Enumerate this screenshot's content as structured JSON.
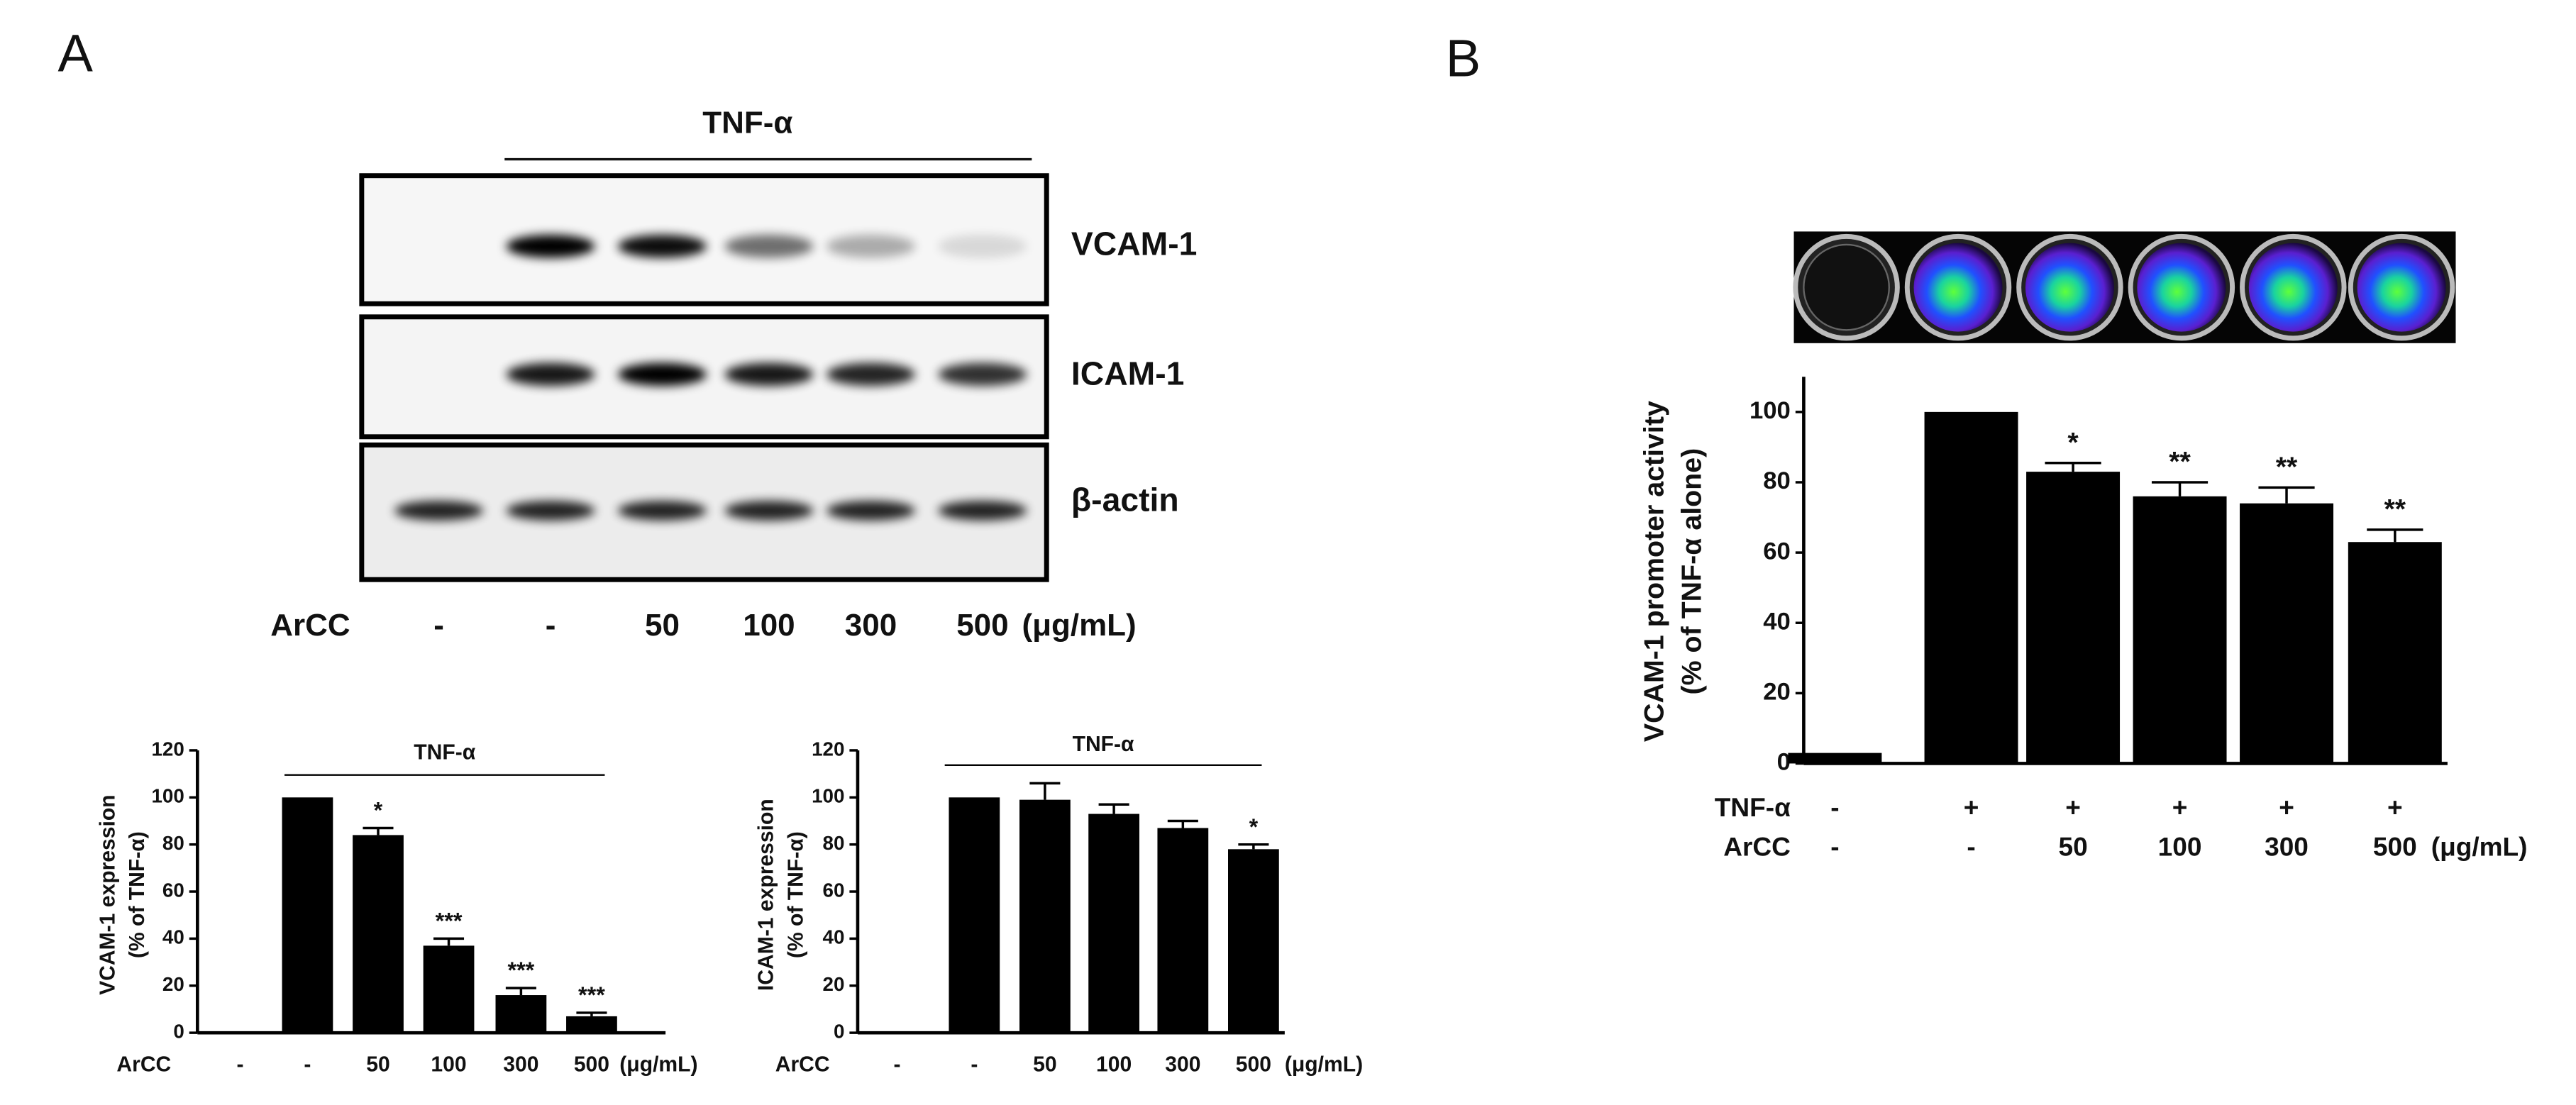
{
  "panel_labels": [
    "A",
    "B"
  ],
  "blot": {
    "treatment": "TNF-α",
    "proteins": [
      "VCAM-1",
      "ICAM-1",
      "β-actin"
    ],
    "dose_label": "ArCC",
    "doses": [
      "-",
      "-",
      "50",
      "100",
      "300",
      "500"
    ],
    "unit": "(μg/mL)"
  },
  "chart_data": [
    {
      "type": "bar",
      "ylabel": [
        "VCAM-1 expression",
        "(% of TNF-α)"
      ],
      "ylim": [
        0,
        120
      ],
      "yticks": [
        0,
        20,
        40,
        60,
        80,
        100,
        120
      ],
      "group_label": "TNF-α",
      "x_row_label": "ArCC",
      "categories": [
        "-",
        "-",
        "50",
        "100",
        "300",
        "500"
      ],
      "x_unit": "(μg/mL)",
      "values": [
        0,
        100,
        84,
        37,
        16,
        7
      ],
      "errors": [
        null,
        null,
        3,
        3,
        3,
        1.5
      ],
      "annotations": [
        null,
        null,
        "*",
        "***",
        "***",
        "***"
      ],
      "color": "#000000"
    },
    {
      "type": "bar",
      "ylabel": [
        "ICAM-1 expression",
        "(% of TNF-α)"
      ],
      "ylim": [
        0,
        120
      ],
      "yticks": [
        0,
        20,
        40,
        60,
        80,
        100,
        120
      ],
      "group_label": "TNF-α",
      "x_row_label": "ArCC",
      "categories": [
        "-",
        "-",
        "50",
        "100",
        "300",
        "500"
      ],
      "x_unit": "(μg/mL)",
      "values": [
        0,
        100,
        99,
        93,
        87,
        78
      ],
      "errors": [
        null,
        null,
        7,
        4,
        3,
        2
      ],
      "annotations": [
        null,
        null,
        null,
        null,
        null,
        "*"
      ],
      "color": "#000000"
    },
    {
      "type": "bar",
      "ylabel": [
        "VCAM-1 promoter activity",
        "(% of TNF-α  alone)"
      ],
      "ylim": [
        0,
        110
      ],
      "yticks": [
        0,
        20,
        40,
        60,
        80,
        100
      ],
      "top_row": {
        "label": "TNF-α",
        "categories": [
          "-",
          "+",
          "+",
          "+",
          "+",
          "+"
        ]
      },
      "x_row_label": "ArCC",
      "categories": [
        "-",
        "-",
        "50",
        "100",
        "300",
        "500"
      ],
      "x_unit": "(μg/mL)",
      "values": [
        3,
        100,
        83,
        76,
        74,
        63
      ],
      "errors": [
        null,
        null,
        2.5,
        4,
        4.5,
        3.5
      ],
      "annotations": [
        null,
        null,
        "*",
        "**",
        "**",
        "**"
      ],
      "color": "#000000"
    }
  ]
}
